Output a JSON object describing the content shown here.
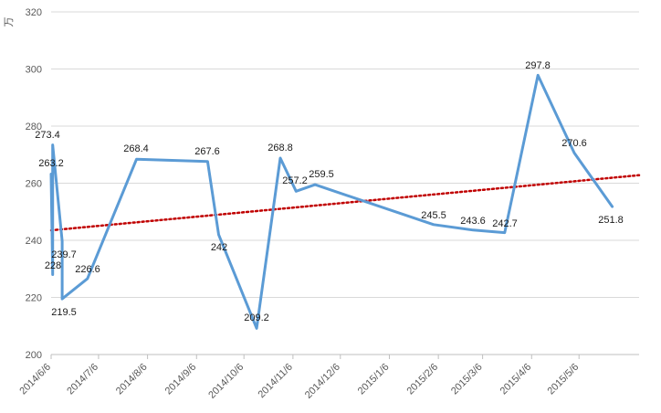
{
  "chart_data": {
    "type": "line",
    "ylabel": "万",
    "ylim": [
      200,
      320
    ],
    "yticks": [
      200,
      220,
      240,
      260,
      280,
      300,
      320
    ],
    "xlim": [
      "2014-06-06",
      "2015-06-13"
    ],
    "xticks": [
      {
        "date": "2014-06-06",
        "label": "2014/6/6"
      },
      {
        "date": "2014-07-06",
        "label": "2014/7/6"
      },
      {
        "date": "2014-08-06",
        "label": "2014/8/6"
      },
      {
        "date": "2014-09-06",
        "label": "2014/9/6"
      },
      {
        "date": "2014-10-06",
        "label": "2014/10/6"
      },
      {
        "date": "2014-11-06",
        "label": "2014/11/6"
      },
      {
        "date": "2014-12-06",
        "label": "2014/12/6"
      },
      {
        "date": "2015-01-06",
        "label": "2015/1/6"
      },
      {
        "date": "2015-02-06",
        "label": "2015/2/6"
      },
      {
        "date": "2015-03-06",
        "label": "2015/3/6"
      },
      {
        "date": "2015-04-06",
        "label": "2015/4/6"
      },
      {
        "date": "2015-05-06",
        "label": "2015/5/6"
      }
    ],
    "grid": true,
    "line_color": "#5b9bd5",
    "trendline_color": "#c00000",
    "series": [
      {
        "points": [
          {
            "date": "2014-06-06",
            "y": 263.2,
            "label": "263.2"
          },
          {
            "date": "2014-06-07",
            "y": 228,
            "label": "228"
          },
          {
            "date": "2014-06-07",
            "y": 273.4,
            "label": "273.4"
          },
          {
            "date": "2014-06-13",
            "y": 239.7,
            "label": "239.7"
          },
          {
            "date": "2014-06-13",
            "y": 219.5,
            "label": "219.5"
          },
          {
            "date": "2014-06-29",
            "y": 226.6,
            "label": "226.6"
          },
          {
            "date": "2014-07-30",
            "y": 268.4,
            "label": "268.4"
          },
          {
            "date": "2014-09-13",
            "y": 267.6,
            "label": "267.6"
          },
          {
            "date": "2014-09-20",
            "y": 242,
            "label": "242"
          },
          {
            "date": "2014-10-14",
            "y": 209.2,
            "label": "209.2"
          },
          {
            "date": "2014-10-29",
            "y": 268.8,
            "label": "268.8"
          },
          {
            "date": "2014-11-08",
            "y": 257.2,
            "label": "257.2"
          },
          {
            "date": "2014-11-20",
            "y": 259.5,
            "label": "259.5"
          },
          {
            "date": "2015-02-03",
            "y": 245.5,
            "label": "245.5"
          },
          {
            "date": "2015-02-28",
            "y": 243.6,
            "label": "243.6"
          },
          {
            "date": "2015-03-20",
            "y": 242.7,
            "label": "242.7"
          },
          {
            "date": "2015-04-10",
            "y": 297.8,
            "label": "297.8"
          },
          {
            "date": "2015-05-03",
            "y": 270.6,
            "label": "270.6"
          },
          {
            "date": "2015-05-27",
            "y": 251.8,
            "label": "251.8"
          }
        ]
      }
    ],
    "trendline": {
      "start": {
        "date": "2014-06-06",
        "y": 243.5
      },
      "end": {
        "date": "2015-06-13",
        "y": 262.8
      }
    }
  }
}
